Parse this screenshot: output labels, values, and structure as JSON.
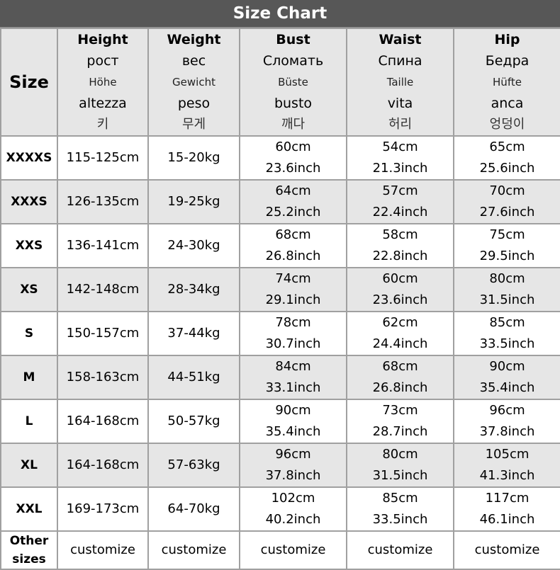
{
  "title": "Size Chart",
  "header": {
    "size": "Size",
    "columns": [
      {
        "en": "Height",
        "ru": "рост",
        "de": "Höhe",
        "it": "altezza",
        "ko": "키"
      },
      {
        "en": "Weight",
        "ru": "вес",
        "de": "Gewicht",
        "it": "peso",
        "ko": "무게"
      },
      {
        "en": "Bust",
        "ru": "Сломать",
        "de": "Büste",
        "it": "busto",
        "ko": "깨다"
      },
      {
        "en": "Waist",
        "ru": "Спина",
        "de": "Taille",
        "it": "vita",
        "ko": "허리"
      },
      {
        "en": "Hip",
        "ru": "Бедра",
        "de": "Hüfte",
        "it": "anca",
        "ko": "엉덩이"
      }
    ]
  },
  "rows": [
    {
      "size": "XXXXS",
      "height": "115-125cm",
      "weight": "15-20kg",
      "bust_cm": "60cm",
      "bust_in": "23.6inch",
      "waist_cm": "54cm",
      "waist_in": "21.3inch",
      "hip_cm": "65cm",
      "hip_in": "25.6inch"
    },
    {
      "size": "XXXS",
      "height": "126-135cm",
      "weight": "19-25kg",
      "bust_cm": "64cm",
      "bust_in": "25.2inch",
      "waist_cm": "57cm",
      "waist_in": "22.4inch",
      "hip_cm": "70cm",
      "hip_in": "27.6inch"
    },
    {
      "size": "XXS",
      "height": "136-141cm",
      "weight": "24-30kg",
      "bust_cm": "68cm",
      "bust_in": "26.8inch",
      "waist_cm": "58cm",
      "waist_in": "22.8inch",
      "hip_cm": "75cm",
      "hip_in": "29.5inch"
    },
    {
      "size": "XS",
      "height": "142-148cm",
      "weight": "28-34kg",
      "bust_cm": "74cm",
      "bust_in": "29.1inch",
      "waist_cm": "60cm",
      "waist_in": "23.6inch",
      "hip_cm": "80cm",
      "hip_in": "31.5inch"
    },
    {
      "size": "S",
      "height": "150-157cm",
      "weight": "37-44kg",
      "bust_cm": "78cm",
      "bust_in": "30.7inch",
      "waist_cm": "62cm",
      "waist_in": "24.4inch",
      "hip_cm": "85cm",
      "hip_in": "33.5inch"
    },
    {
      "size": "M",
      "height": "158-163cm",
      "weight": "44-51kg",
      "bust_cm": "84cm",
      "bust_in": "33.1inch",
      "waist_cm": "68cm",
      "waist_in": "26.8inch",
      "hip_cm": "90cm",
      "hip_in": "35.4inch"
    },
    {
      "size": "L",
      "height": "164-168cm",
      "weight": "50-57kg",
      "bust_cm": "90cm",
      "bust_in": "35.4inch",
      "waist_cm": "73cm",
      "waist_in": "28.7inch",
      "hip_cm": "96cm",
      "hip_in": "37.8inch"
    },
    {
      "size": "XL",
      "height": "164-168cm",
      "weight": "57-63kg",
      "bust_cm": "96cm",
      "bust_in": "37.8inch",
      "waist_cm": "80cm",
      "waist_in": "31.5inch",
      "hip_cm": "105cm",
      "hip_in": "41.3inch"
    },
    {
      "size": "XXL",
      "height": "169-173cm",
      "weight": "64-70kg",
      "bust_cm": "102cm",
      "bust_in": "40.2inch",
      "waist_cm": "85cm",
      "waist_in": "33.5inch",
      "hip_cm": "117cm",
      "hip_in": "46.1inch"
    }
  ],
  "other": {
    "size_line1": "Other",
    "size_line2": "sizes",
    "value": "customize"
  },
  "colors": {
    "title_bg": "#575757",
    "header_bg": "#e6e6e6",
    "alt_row_bg": "#e6e6e6",
    "border": "#a0a0a0"
  }
}
